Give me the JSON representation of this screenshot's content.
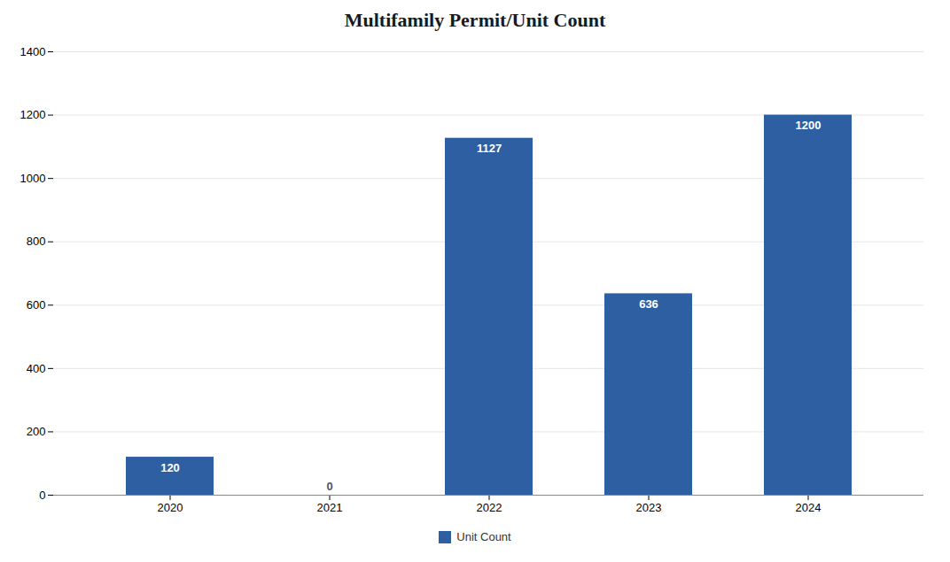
{
  "chart_data": {
    "type": "bar",
    "title": "Multifamily Permit/Unit Count",
    "categories": [
      "2020",
      "2021",
      "2022",
      "2023",
      "2024"
    ],
    "series": [
      {
        "name": "Unit Count",
        "color": "#2E5FA3",
        "values": [
          120,
          0,
          1127,
          636,
          1200
        ]
      }
    ],
    "ylim": [
      0,
      1400
    ],
    "yticks": [
      0,
      200,
      400,
      600,
      800,
      1000,
      1200,
      1400
    ],
    "grid": true,
    "legend": "bottom",
    "data_labels": true
  }
}
